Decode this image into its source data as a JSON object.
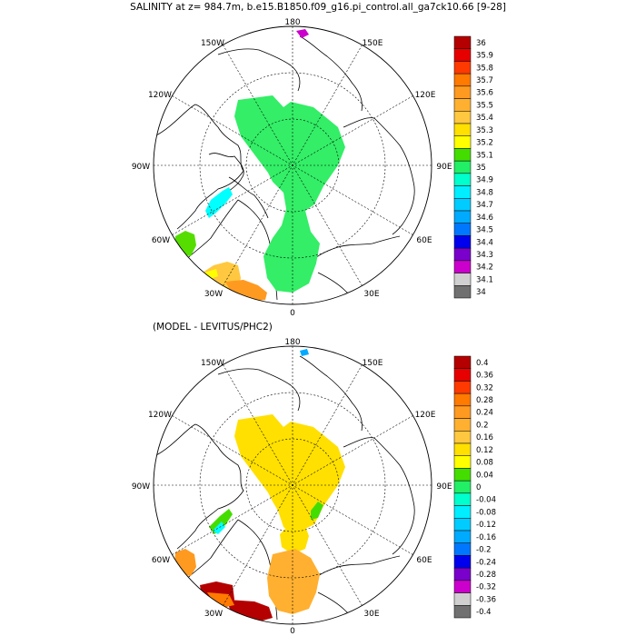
{
  "figure": {
    "title_top": "SALINITY at z= 984.7m, b.e15.B1850.f09_g16.pi_control.all_ga7ck10.66 [9-28]",
    "title_bottom": "(MODEL - LEVITUS/PHC2)"
  },
  "map_labels": {
    "lon_180": "180",
    "lon_150W": "150W",
    "lon_150E": "150E",
    "lon_120W": "120W",
    "lon_120E": "120E",
    "lon_90W": "90W",
    "lon_90E": "90E",
    "lon_60W": "60W",
    "lon_60E": "60E",
    "lon_30W": "30W",
    "lon_30E": "30E",
    "lon_0": "0"
  },
  "colorbar_top": {
    "labels": [
      "36",
      "35.9",
      "35.8",
      "35.7",
      "35.6",
      "35.5",
      "35.4",
      "35.3",
      "35.2",
      "35.1",
      "35",
      "34.9",
      "34.8",
      "34.7",
      "34.6",
      "34.5",
      "34.4",
      "34.3",
      "34.2",
      "34.1",
      "34"
    ],
    "colors": [
      "#b40000",
      "#e60000",
      "#ff3a00",
      "#ff7a00",
      "#ff9a20",
      "#ffb030",
      "#ffc840",
      "#ffe000",
      "#ffff00",
      "#44dd00",
      "#22ee66",
      "#00ffcc",
      "#00eeff",
      "#00ccff",
      "#00aaff",
      "#0077ff",
      "#0000ee",
      "#7a00cc",
      "#cc00cc",
      "#d0d0d0",
      "#707070"
    ]
  },
  "colorbar_bottom": {
    "labels": [
      "0.4",
      "0.36",
      "0.32",
      "0.28",
      "0.24",
      "0.2",
      "0.16",
      "0.12",
      "0.08",
      "0.04",
      "0",
      "-0.04",
      "-0.08",
      "-0.12",
      "-0.16",
      "-0.2",
      "-0.24",
      "-0.28",
      "-0.32",
      "-0.36",
      "-0.4"
    ],
    "colors": [
      "#b40000",
      "#e60000",
      "#ff3a00",
      "#ff7a00",
      "#ff9a20",
      "#ffb030",
      "#ffc840",
      "#ffe000",
      "#ffff00",
      "#44dd00",
      "#22ee66",
      "#00ffcc",
      "#00eeff",
      "#00ccff",
      "#00aaff",
      "#0077ff",
      "#0000ee",
      "#7a00cc",
      "#cc00cc",
      "#d0d0d0",
      "#707070"
    ]
  }
}
